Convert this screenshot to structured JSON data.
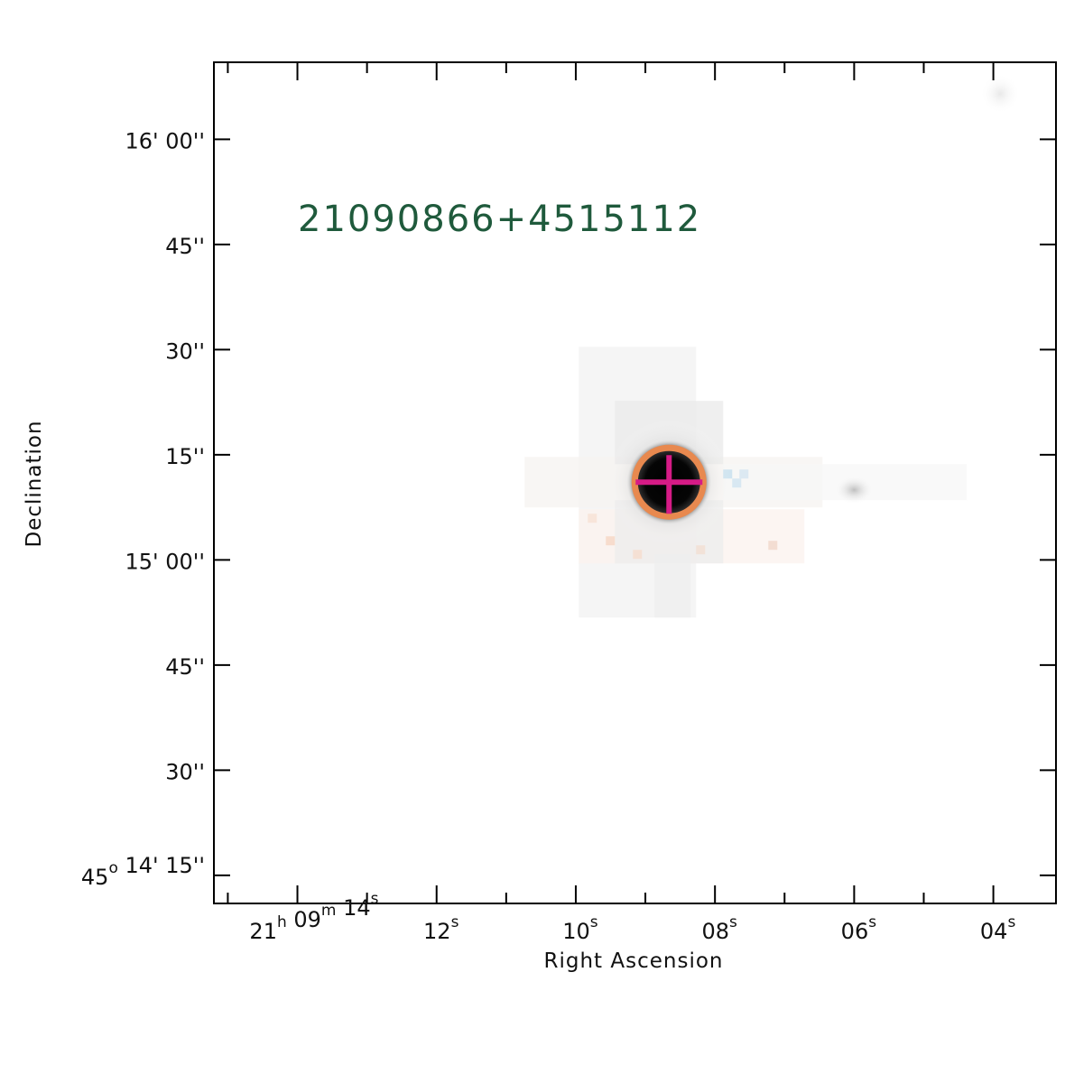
{
  "source_name": "21090866+4515112",
  "colors": {
    "source_label": "#1f5a3c",
    "aperture_circle": "#e8894f",
    "crosshair": "#d61b86",
    "axes": "#000000"
  },
  "chart_data": {
    "type": "heatmap",
    "title": "21090866+4515112",
    "xlabel": "Right Ascension",
    "ylabel": "Declination",
    "x_axis": {
      "units": "RA seconds (21h 09m)",
      "range": [
        15.2,
        3.1
      ],
      "major_ticks": [
        {
          "value": 14,
          "parts": [
            [
              "21",
              "h"
            ],
            [
              " 09",
              "m"
            ],
            [
              " 14",
              "s"
            ]
          ]
        },
        {
          "value": 12,
          "parts": [
            [
              "12",
              "s"
            ]
          ]
        },
        {
          "value": 10,
          "parts": [
            [
              "10",
              "s"
            ]
          ]
        },
        {
          "value": 8,
          "parts": [
            [
              "08",
              "s"
            ]
          ]
        },
        {
          "value": 6,
          "parts": [
            [
              "06",
              "s"
            ]
          ]
        },
        {
          "value": 4,
          "parts": [
            [
              "04",
              "s"
            ]
          ]
        }
      ],
      "minor_step": 1
    },
    "y_axis": {
      "units": "Dec arcsec (offset from 45d 14' 00\")",
      "range": [
        11,
        131
      ],
      "major_ticks": [
        {
          "value": 15,
          "parts": [
            [
              "45",
              "o"
            ],
            [
              " 14' 15''",
              ""
            ]
          ]
        },
        {
          "value": 30,
          "parts": [
            [
              "30''",
              ""
            ]
          ]
        },
        {
          "value": 45,
          "parts": [
            [
              "45''",
              ""
            ]
          ]
        },
        {
          "value": 60,
          "parts": [
            [
              "15' 00''",
              ""
            ]
          ]
        },
        {
          "value": 75,
          "parts": [
            [
              "15''",
              ""
            ]
          ]
        },
        {
          "value": 90,
          "parts": [
            [
              "30''",
              ""
            ]
          ]
        },
        {
          "value": 105,
          "parts": [
            [
              "45''",
              ""
            ]
          ]
        },
        {
          "value": 120,
          "parts": [
            [
              "16' 00''",
              ""
            ]
          ]
        }
      ]
    },
    "target": {
      "ra_s": 8.66,
      "dec_arcsec": 71.1
    },
    "secondary_source": {
      "ra_s": 6.0,
      "dec_arcsec": 70.0
    },
    "faint_corner_source": {
      "ra_s": 3.9,
      "dec_arcsec": 126.5
    }
  }
}
